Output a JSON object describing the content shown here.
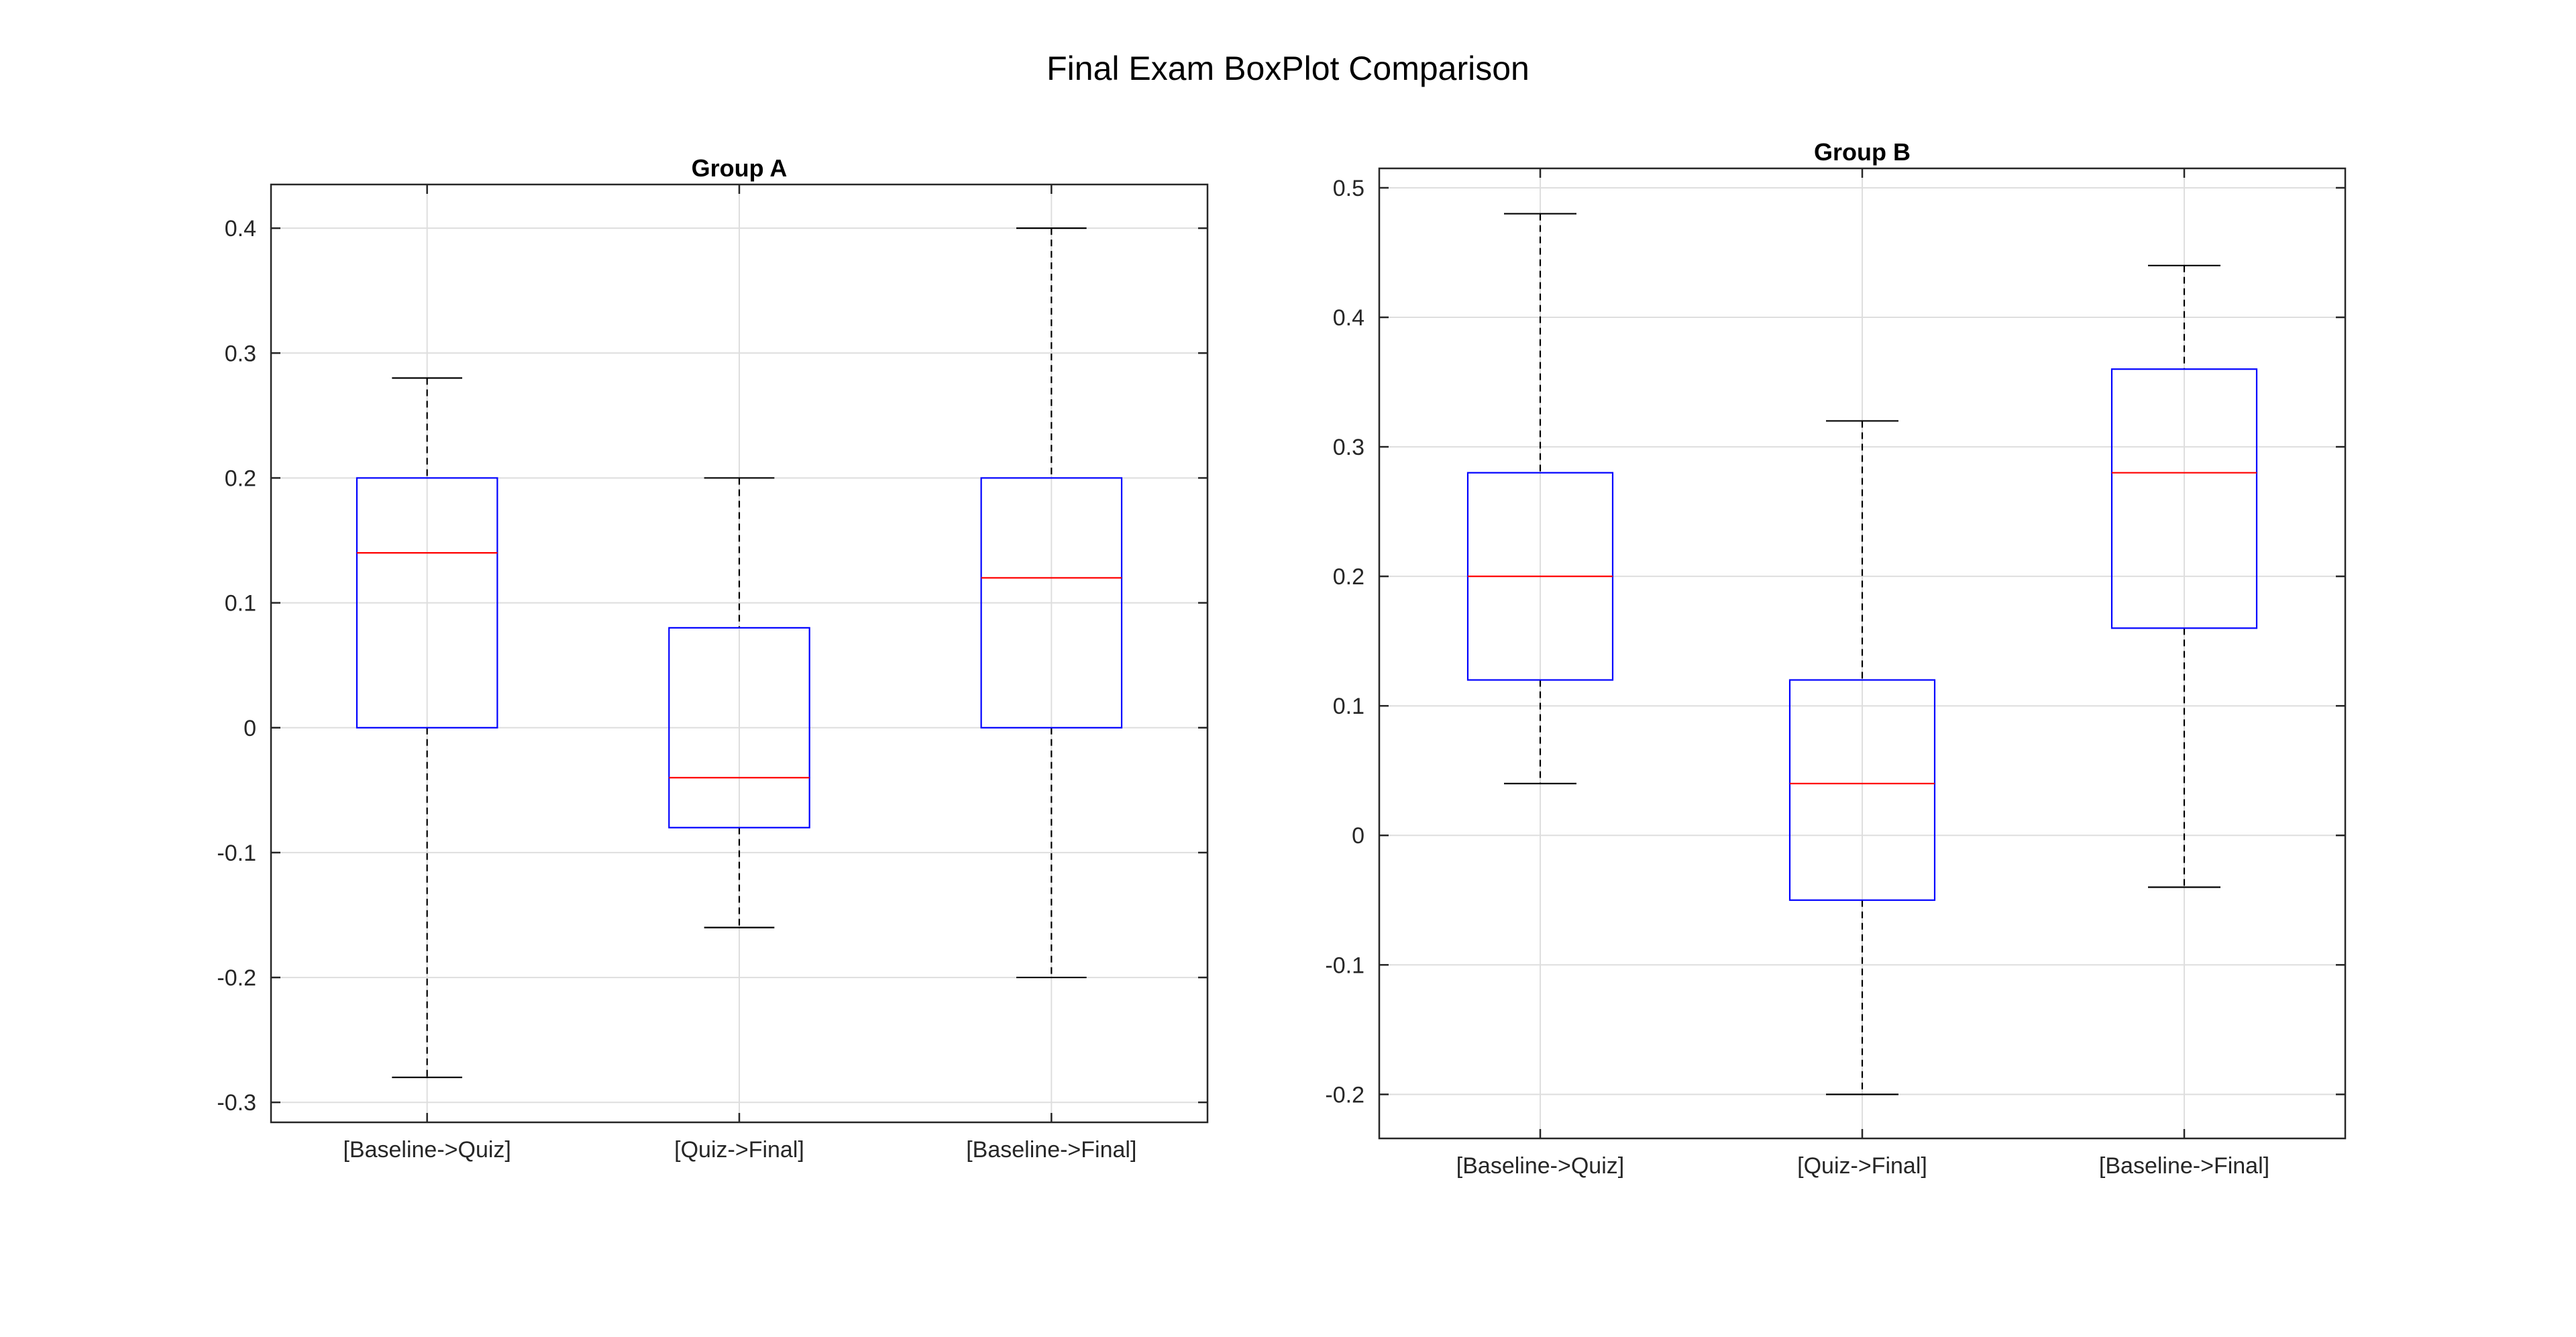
{
  "figure": {
    "title": "Final Exam BoxPlot Comparison"
  },
  "chart_data": [
    {
      "type": "boxplot",
      "title": "Group A",
      "xlabel": "",
      "ylabel": "",
      "categories": [
        "[Baseline->Quiz]",
        "[Quiz->Final]",
        "[Baseline->Final]"
      ],
      "ylim": [
        -0.316,
        0.435
      ],
      "yticks": [
        -0.3,
        -0.2,
        -0.1,
        0,
        0.1,
        0.2,
        0.3,
        0.4
      ],
      "ytick_labels": [
        "-0.3",
        "-0.2",
        "-0.1",
        "0",
        "0.1",
        "0.2",
        "0.3",
        "0.4"
      ],
      "grid": true,
      "boxes": [
        {
          "whisker_low": -0.28,
          "q1": 0.0,
          "median": 0.14,
          "q3": 0.2,
          "whisker_high": 0.28
        },
        {
          "whisker_low": -0.16,
          "q1": -0.08,
          "median": -0.04,
          "q3": 0.08,
          "whisker_high": 0.2
        },
        {
          "whisker_low": -0.2,
          "q1": 0.0,
          "median": 0.12,
          "q3": 0.2,
          "whisker_high": 0.4
        }
      ]
    },
    {
      "type": "boxplot",
      "title": "Group B",
      "xlabel": "",
      "ylabel": "",
      "categories": [
        "[Baseline->Quiz]",
        "[Quiz->Final]",
        "[Baseline->Final]"
      ],
      "ylim": [
        -0.234,
        0.515
      ],
      "yticks": [
        -0.2,
        -0.1,
        0,
        0.1,
        0.2,
        0.3,
        0.4,
        0.5
      ],
      "ytick_labels": [
        "-0.2",
        "-0.1",
        "0",
        "0.1",
        "0.2",
        "0.3",
        "0.4",
        "0.5"
      ],
      "grid": true,
      "boxes": [
        {
          "whisker_low": 0.04,
          "q1": 0.12,
          "median": 0.2,
          "q3": 0.28,
          "whisker_high": 0.48
        },
        {
          "whisker_low": -0.2,
          "q1": -0.05,
          "median": 0.04,
          "q3": 0.12,
          "whisker_high": 0.32
        },
        {
          "whisker_low": -0.04,
          "q1": 0.16,
          "median": 0.28,
          "q3": 0.36,
          "whisker_high": 0.44
        }
      ]
    }
  ],
  "colors": {
    "box": "#0000ff",
    "median": "#ff0000",
    "whisker": "#000000",
    "grid": "#dedede",
    "axis": "#262626"
  }
}
